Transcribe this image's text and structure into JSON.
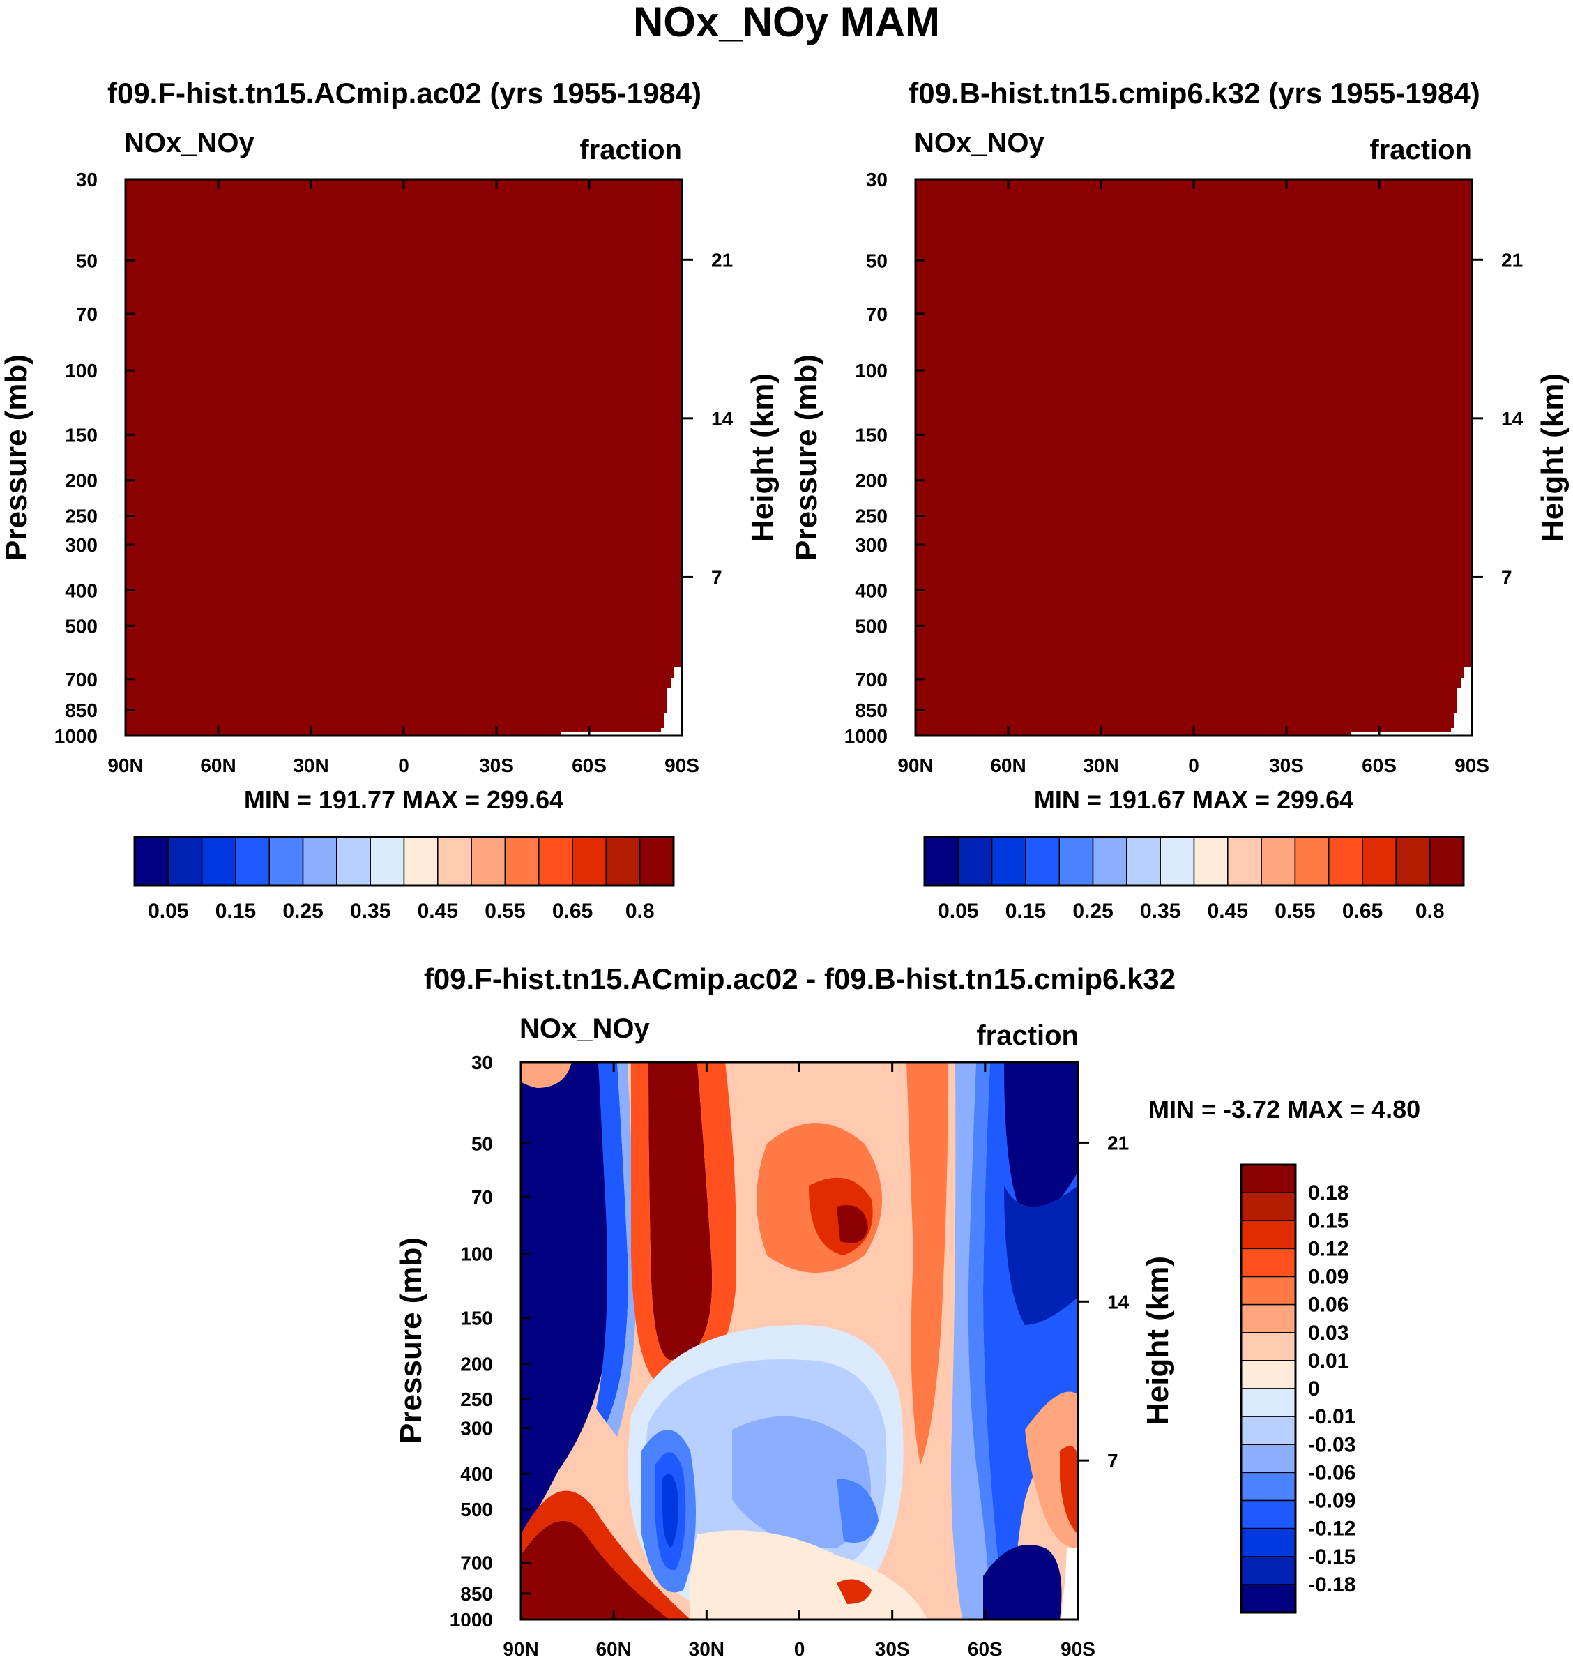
{
  "figure": {
    "title": "NOx_NOy MAM"
  },
  "chart_data": [
    {
      "type": "heatmap",
      "id": "panel-a",
      "title": "f09.F-hist.tn15.ACmip.ac02 (yrs 1955-1984)",
      "variable": "NOx_NOy",
      "units": "fraction",
      "ylabel": "Pressure (mb)",
      "ylabel_right": "Height (km)",
      "x_ticks": [
        "90N",
        "60N",
        "30N",
        "0",
        "30S",
        "60S",
        "90S"
      ],
      "y_ticks": [
        "30",
        "50",
        "70",
        "100",
        "150",
        "200",
        "250",
        "300",
        "400",
        "500",
        "700",
        "850",
        "1000"
      ],
      "height_ticks": [
        "21",
        "14",
        "7"
      ],
      "stats": "MIN = 191.77  MAX = 299.64",
      "fill_color": "#8B0000",
      "colorbar": {
        "colors": [
          "#000080",
          "#0022B4",
          "#0038E0",
          "#1E5AFF",
          "#4A82FF",
          "#8CAEFF",
          "#B8D0FF",
          "#DCEAFF",
          "#FFEBD9",
          "#FFCAB0",
          "#FFA67E",
          "#FF7A45",
          "#FF501E",
          "#E02C00",
          "#B41C00",
          "#8B0000"
        ],
        "labels": [
          "0.05",
          "0.15",
          "0.25",
          "0.35",
          "0.45",
          "0.55",
          "0.65",
          "0.8"
        ]
      }
    },
    {
      "type": "heatmap",
      "id": "panel-b",
      "title": "f09.B-hist.tn15.cmip6.k32 (yrs 1955-1984)",
      "variable": "NOx_NOy",
      "units": "fraction",
      "ylabel": "Pressure (mb)",
      "ylabel_right": "Height (km)",
      "x_ticks": [
        "90N",
        "60N",
        "30N",
        "0",
        "30S",
        "60S",
        "90S"
      ],
      "y_ticks": [
        "30",
        "50",
        "70",
        "100",
        "150",
        "200",
        "250",
        "300",
        "400",
        "500",
        "700",
        "850",
        "1000"
      ],
      "height_ticks": [
        "21",
        "14",
        "7"
      ],
      "stats": "MIN = 191.67  MAX = 299.64",
      "fill_color": "#8B0000",
      "colorbar": {
        "colors": [
          "#000080",
          "#0022B4",
          "#0038E0",
          "#1E5AFF",
          "#4A82FF",
          "#8CAEFF",
          "#B8D0FF",
          "#DCEAFF",
          "#FFEBD9",
          "#FFCAB0",
          "#FFA67E",
          "#FF7A45",
          "#FF501E",
          "#E02C00",
          "#B41C00",
          "#8B0000"
        ],
        "labels": [
          "0.05",
          "0.15",
          "0.25",
          "0.35",
          "0.45",
          "0.55",
          "0.65",
          "0.8"
        ]
      }
    },
    {
      "type": "heatmap",
      "id": "panel-diff",
      "title": "f09.F-hist.tn15.ACmip.ac02 - f09.B-hist.tn15.cmip6.k32",
      "variable": "NOx_NOy",
      "units": "fraction",
      "ylabel": "Pressure (mb)",
      "ylabel_right": "Height (km)",
      "x_ticks": [
        "90N",
        "60N",
        "30N",
        "0",
        "30S",
        "60S",
        "90S"
      ],
      "y_ticks": [
        "30",
        "50",
        "70",
        "100",
        "150",
        "200",
        "250",
        "300",
        "400",
        "500",
        "700",
        "850",
        "1000"
      ],
      "height_ticks": [
        "21",
        "14",
        "7"
      ],
      "stats": "MIN =  -3.72  MAX =   4.80",
      "colorbar": {
        "colors": [
          "#8B0000",
          "#B41C00",
          "#E02C00",
          "#FF501E",
          "#FF7A45",
          "#FFA67E",
          "#FFCAB0",
          "#FFEBD9",
          "#DCEAFF",
          "#B8D0FF",
          "#8CAEFF",
          "#4A82FF",
          "#1E5AFF",
          "#0038E0",
          "#0022B4",
          "#000080"
        ],
        "labels": [
          "0.18",
          "0.15",
          "0.12",
          "0.09",
          "0.06",
          "0.03",
          "0.01",
          "0",
          "-0.01",
          "-0.03",
          "-0.06",
          "-0.09",
          "-0.12",
          "-0.15",
          "-0.18"
        ]
      }
    }
  ]
}
